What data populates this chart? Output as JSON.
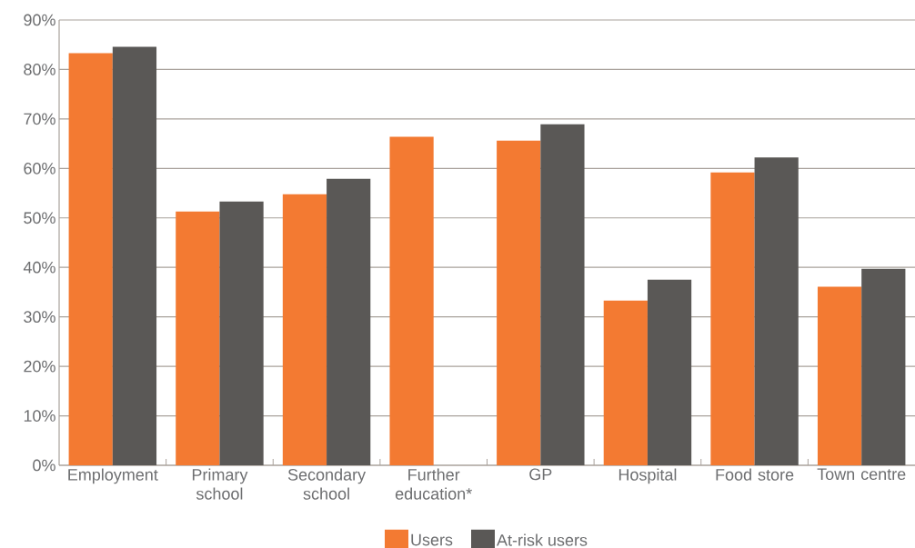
{
  "chart_data": {
    "type": "bar",
    "categories": [
      "Employment",
      "Primary school",
      "Secondary school",
      "Further education*",
      "GP",
      "Hospital",
      "Food store",
      "Town centre"
    ],
    "series": [
      {
        "name": "Users",
        "color": "#f37a32",
        "values": [
          83.3,
          51.3,
          54.8,
          66.4,
          65.6,
          33.3,
          59.2,
          36.1
        ]
      },
      {
        "name": "At-risk users",
        "color": "#5a5856",
        "values": [
          84.6,
          53.3,
          57.9,
          null,
          68.9,
          37.5,
          62.2,
          39.7
        ]
      }
    ],
    "ylim": [
      0,
      90
    ],
    "yticks": [
      {
        "value": 0,
        "label": "0%"
      },
      {
        "value": 10,
        "label": "10%"
      },
      {
        "value": 20,
        "label": "20%"
      },
      {
        "value": 30,
        "label": "30%"
      },
      {
        "value": 40,
        "label": "40%"
      },
      {
        "value": 50,
        "label": "50%"
      },
      {
        "value": 60,
        "label": "60%"
      },
      {
        "value": 70,
        "label": "70%"
      },
      {
        "value": 80,
        "label": "80%"
      },
      {
        "value": 90,
        "label": "90%"
      }
    ],
    "grid": "y",
    "legend": "bottom"
  }
}
